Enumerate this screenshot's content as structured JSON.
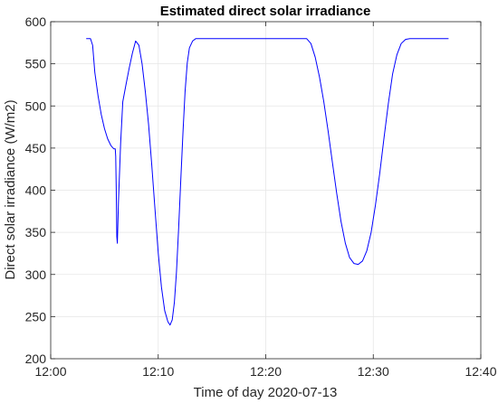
{
  "chart_data": {
    "type": "line",
    "title": "Estimated direct solar irradiance",
    "xlabel": "Time of day 2020-07-13",
    "ylabel": "Direct solar irradiance (W/m2)",
    "xlim": [
      0,
      40
    ],
    "ylim": [
      200,
      600
    ],
    "x_ticks": [
      0,
      10,
      20,
      30,
      40
    ],
    "x_tick_labels": [
      "12:00",
      "12:10",
      "12:20",
      "12:30",
      "12:40"
    ],
    "y_ticks": [
      200,
      250,
      300,
      350,
      400,
      450,
      500,
      550,
      600
    ],
    "y_tick_labels": [
      "200",
      "250",
      "300",
      "350",
      "400",
      "450",
      "500",
      "550",
      "600"
    ],
    "grid": true,
    "colors": {
      "line": "#0000ff",
      "grid": "#e6e6e6",
      "axis": "#262626"
    },
    "series": [
      {
        "x": [
          3.3,
          3.7,
          3.9,
          4.1,
          4.4,
          4.7,
          5.0,
          5.3,
          5.6,
          5.8,
          5.9,
          6.0,
          6.05,
          6.1,
          6.15,
          6.2,
          6.3,
          6.5,
          6.7,
          7.0,
          7.3,
          7.6,
          7.9,
          8.2,
          8.5,
          8.8,
          9.1,
          9.4,
          9.7,
          10.0,
          10.3,
          10.6,
          10.9,
          11.1,
          11.3,
          11.5,
          11.7,
          11.9,
          12.1,
          12.3,
          12.5,
          12.7,
          12.9,
          13.2,
          13.5,
          13.8,
          14.1,
          14.4,
          14.8,
          20.0,
          23.8,
          24.2,
          24.6,
          25.0,
          25.4,
          25.8,
          26.2,
          26.6,
          27.0,
          27.4,
          27.8,
          28.2,
          28.6,
          29.0,
          29.4,
          29.8,
          30.2,
          30.6,
          31.0,
          31.4,
          31.8,
          32.2,
          32.6,
          33.0,
          33.4,
          33.8,
          34.2,
          35.0,
          37.0
        ],
        "y": [
          580,
          580,
          572,
          540,
          512,
          490,
          473,
          461,
          453,
          450,
          449,
          449,
          440,
          400,
          345,
          337,
          385,
          455,
          505,
          525,
          545,
          563,
          577,
          572,
          550,
          517,
          478,
          430,
          377,
          325,
          285,
          257,
          244,
          240,
          246,
          267,
          303,
          355,
          413,
          469,
          517,
          551,
          569,
          577,
          580,
          580,
          580,
          580,
          580,
          580,
          580,
          574,
          558,
          534,
          505,
          470,
          433,
          396,
          363,
          337,
          320,
          313,
          312,
          316,
          328,
          350,
          382,
          420,
          462,
          503,
          538,
          561,
          574,
          579,
          580,
          580,
          580,
          580,
          580
        ]
      }
    ]
  }
}
